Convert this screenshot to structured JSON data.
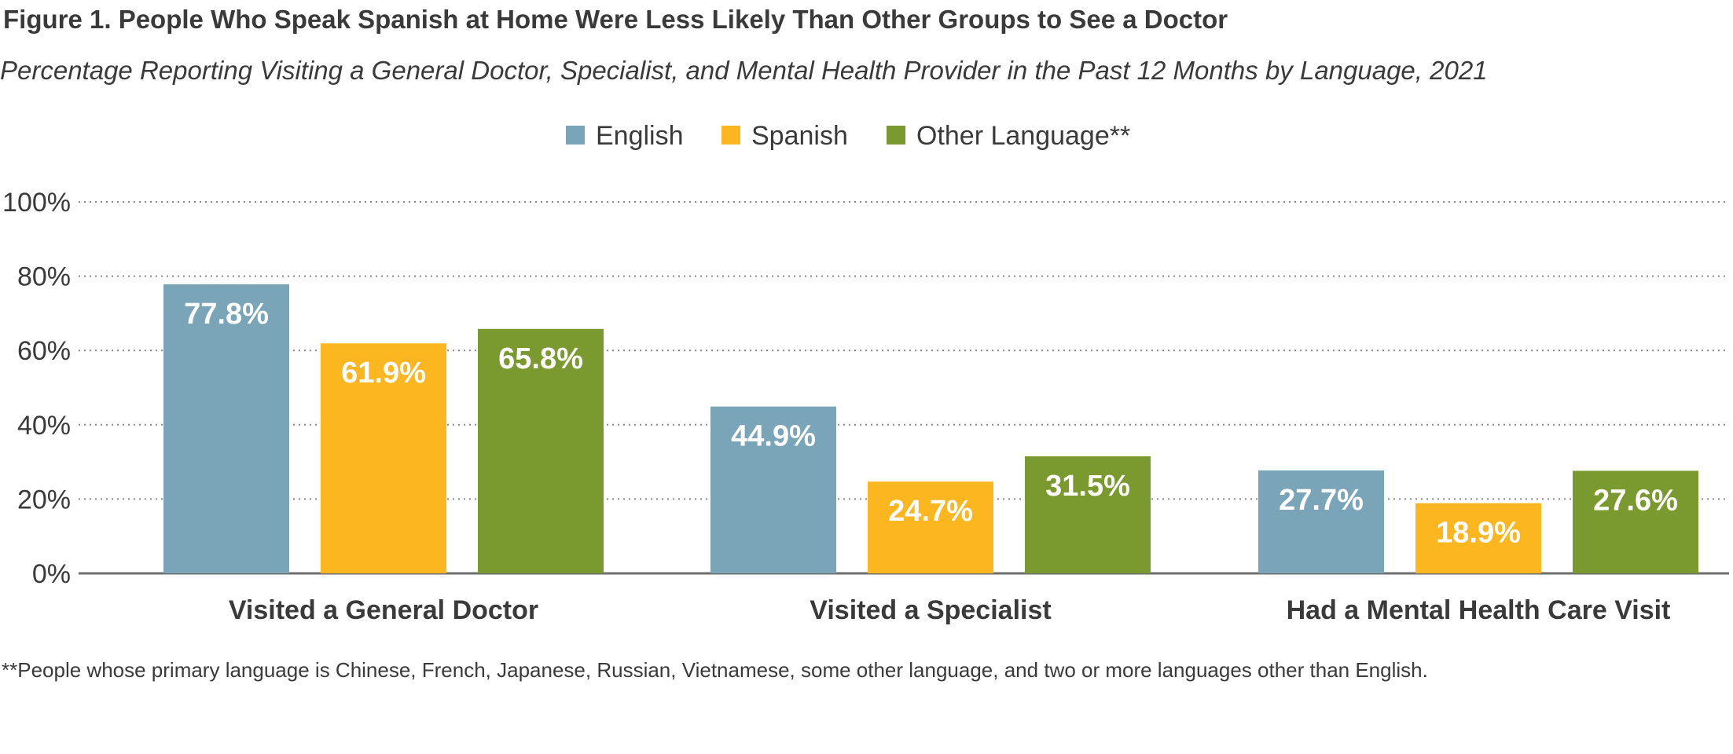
{
  "chart_data": {
    "type": "bar",
    "title": "Figure 1. People Who Speak Spanish at Home Were Less Likely Than Other Groups to See a Doctor",
    "subtitle": "Percentage Reporting Visiting a General Doctor, Specialist, and Mental Health Provider in the Past 12 Months by Language, 2021",
    "categories": [
      "Visited a General Doctor",
      "Visited a Specialist",
      "Had a Mental Health Care Visit"
    ],
    "series": [
      {
        "name": "English",
        "color": "#7aa5b9",
        "values": [
          77.8,
          44.9,
          27.7
        ],
        "labels": [
          "77.8%",
          "44.9%",
          "27.7%"
        ]
      },
      {
        "name": "Spanish",
        "color": "#fbb620",
        "values": [
          61.9,
          24.7,
          18.9
        ],
        "labels": [
          "61.9%",
          "24.7%",
          "18.9%"
        ]
      },
      {
        "name": "Other Language**",
        "color": "#7a9a2f",
        "values": [
          65.8,
          31.5,
          27.6
        ],
        "labels": [
          "65.8%",
          "31.5%",
          "27.6%"
        ]
      }
    ],
    "yticks": [
      0,
      20,
      40,
      60,
      80,
      100
    ],
    "ytick_labels": [
      "0%",
      "20%",
      "40%",
      "60%",
      "80%",
      "100%"
    ],
    "ylim": [
      0,
      100
    ],
    "grid": true,
    "legend": "top-center",
    "footnote": "**People whose primary language is Chinese, French, Japanese, Russian, Vietnamese, some other language, and two or more languages other than English."
  }
}
